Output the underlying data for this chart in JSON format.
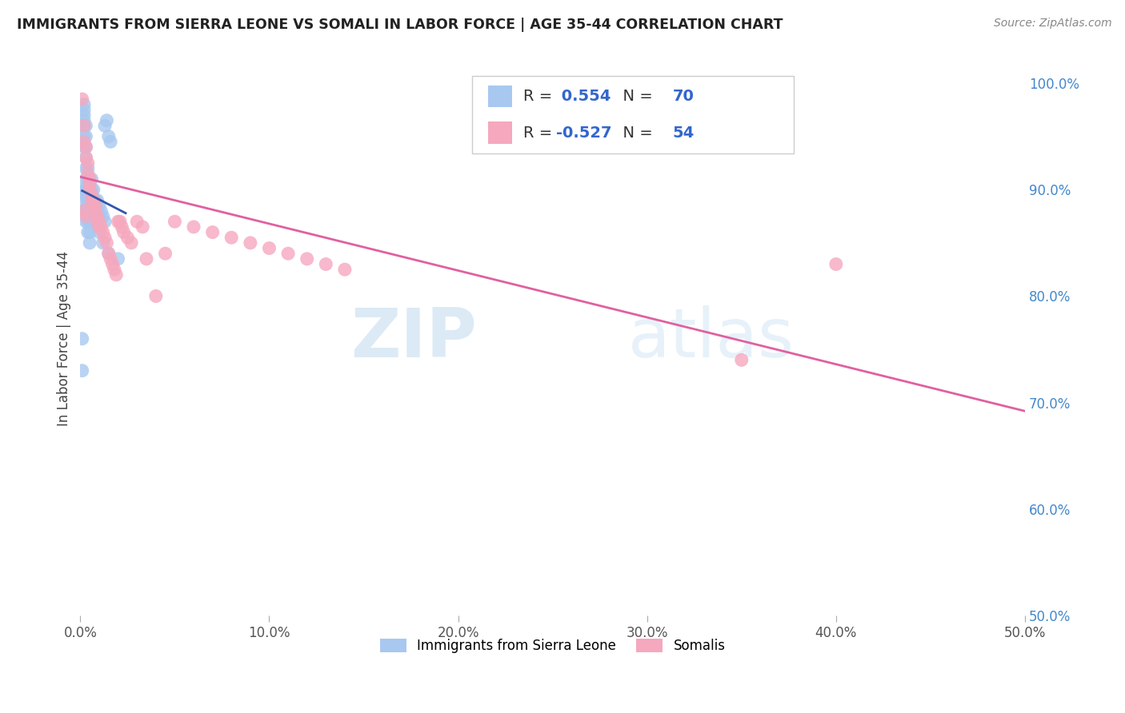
{
  "title": "IMMIGRANTS FROM SIERRA LEONE VS SOMALI IN LABOR FORCE | AGE 35-44 CORRELATION CHART",
  "source": "Source: ZipAtlas.com",
  "ylabel": "In Labor Force | Age 35-44",
  "xlim": [
    0.0,
    0.5
  ],
  "ylim": [
    0.5,
    1.02
  ],
  "ytick_labels": [
    "50.0%",
    "60.0%",
    "70.0%",
    "80.0%",
    "90.0%",
    "100.0%"
  ],
  "ytick_values": [
    0.5,
    0.6,
    0.7,
    0.8,
    0.9,
    1.0
  ],
  "xtick_labels": [
    "0.0%",
    "10.0%",
    "20.0%",
    "30.0%",
    "40.0%",
    "50.0%"
  ],
  "xtick_values": [
    0.0,
    0.1,
    0.2,
    0.3,
    0.4,
    0.5
  ],
  "legend_label_blue": "Immigrants from Sierra Leone",
  "legend_label_pink": "Somalis",
  "R_blue": 0.554,
  "N_blue": 70,
  "R_pink": -0.527,
  "N_pink": 54,
  "color_blue": "#A8C8F0",
  "color_pink": "#F5A8BE",
  "line_color_blue": "#3355AA",
  "line_color_pink": "#E060A0",
  "watermark_zip": "ZIP",
  "watermark_atlas": "atlas",
  "sl_x": [
    0.001,
    0.001,
    0.001,
    0.002,
    0.002,
    0.002,
    0.002,
    0.002,
    0.002,
    0.002,
    0.003,
    0.003,
    0.003,
    0.003,
    0.003,
    0.003,
    0.003,
    0.003,
    0.003,
    0.003,
    0.004,
    0.004,
    0.004,
    0.004,
    0.004,
    0.004,
    0.004,
    0.004,
    0.004,
    0.004,
    0.005,
    0.005,
    0.005,
    0.005,
    0.005,
    0.005,
    0.005,
    0.006,
    0.006,
    0.006,
    0.006,
    0.006,
    0.007,
    0.007,
    0.007,
    0.007,
    0.008,
    0.008,
    0.008,
    0.009,
    0.009,
    0.01,
    0.01,
    0.011,
    0.012,
    0.013,
    0.013,
    0.014,
    0.015,
    0.016,
    0.001,
    0.002,
    0.003,
    0.004,
    0.005,
    0.006,
    0.01,
    0.012,
    0.015,
    0.02
  ],
  "sl_y": [
    0.76,
    0.88,
    0.9,
    0.94,
    0.95,
    0.96,
    0.965,
    0.97,
    0.975,
    0.98,
    0.87,
    0.88,
    0.89,
    0.9,
    0.91,
    0.92,
    0.93,
    0.94,
    0.95,
    0.96,
    0.86,
    0.87,
    0.88,
    0.885,
    0.89,
    0.895,
    0.9,
    0.905,
    0.91,
    0.92,
    0.85,
    0.86,
    0.87,
    0.88,
    0.89,
    0.895,
    0.9,
    0.87,
    0.88,
    0.89,
    0.9,
    0.91,
    0.87,
    0.88,
    0.89,
    0.9,
    0.87,
    0.88,
    0.89,
    0.88,
    0.89,
    0.875,
    0.885,
    0.88,
    0.875,
    0.87,
    0.96,
    0.965,
    0.95,
    0.945,
    0.73,
    0.88,
    0.895,
    0.885,
    0.875,
    0.87,
    0.86,
    0.85,
    0.84,
    0.835
  ],
  "so_x": [
    0.001,
    0.002,
    0.002,
    0.003,
    0.003,
    0.004,
    0.004,
    0.005,
    0.005,
    0.005,
    0.006,
    0.006,
    0.007,
    0.007,
    0.008,
    0.008,
    0.009,
    0.009,
    0.01,
    0.01,
    0.011,
    0.012,
    0.013,
    0.014,
    0.015,
    0.016,
    0.017,
    0.018,
    0.019,
    0.02,
    0.021,
    0.022,
    0.023,
    0.025,
    0.027,
    0.03,
    0.033,
    0.035,
    0.04,
    0.045,
    0.05,
    0.06,
    0.07,
    0.08,
    0.09,
    0.1,
    0.11,
    0.12,
    0.13,
    0.14,
    0.002,
    0.003,
    0.35,
    0.4
  ],
  "so_y": [
    0.985,
    0.96,
    0.945,
    0.94,
    0.93,
    0.925,
    0.915,
    0.91,
    0.905,
    0.9,
    0.895,
    0.89,
    0.89,
    0.885,
    0.885,
    0.88,
    0.875,
    0.87,
    0.87,
    0.865,
    0.865,
    0.86,
    0.855,
    0.85,
    0.84,
    0.835,
    0.83,
    0.825,
    0.82,
    0.87,
    0.87,
    0.865,
    0.86,
    0.855,
    0.85,
    0.87,
    0.865,
    0.835,
    0.8,
    0.84,
    0.87,
    0.865,
    0.86,
    0.855,
    0.85,
    0.845,
    0.84,
    0.835,
    0.83,
    0.825,
    0.88,
    0.875,
    0.74,
    0.83
  ],
  "so_line_x": [
    0.0,
    0.5
  ],
  "so_line_y": [
    0.912,
    0.692
  ]
}
